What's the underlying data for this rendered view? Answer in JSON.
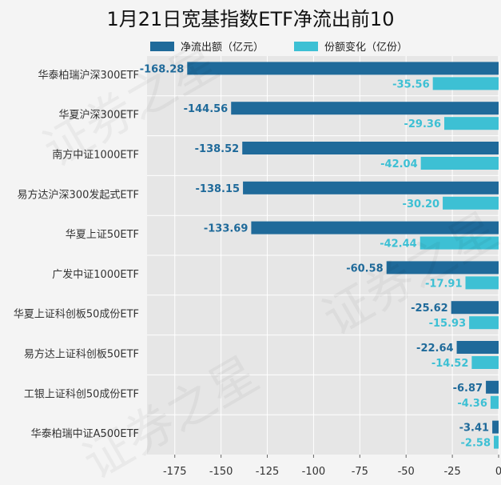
{
  "title": "1月21日宽基指数ETF净流出前10",
  "colors": {
    "series1": "#1f6a9a",
    "series2": "#3dc0d4",
    "grid": "#ffffff",
    "plot_bg": "#e6e6e6"
  },
  "chart_data": {
    "type": "bar",
    "orientation": "horizontal",
    "title": "1月21日宽基指数ETF净流出前10",
    "categories": [
      "华泰柏瑞沪深300ETF",
      "华夏沪深300ETF",
      "南方中证1000ETF",
      "易方达沪深300发起式ETF",
      "华夏上证50ETF",
      "广发中证1000ETF",
      "华夏上证科创板50成份ETF",
      "易方达上证科创板50ETF",
      "工银上证科创50成份ETF",
      "华泰柏瑞中证A500ETF"
    ],
    "series": [
      {
        "name": "净流出额（亿元）",
        "values": [
          -168.28,
          -144.56,
          -138.52,
          -138.15,
          -133.69,
          -60.58,
          -25.62,
          -22.64,
          -6.87,
          -3.41
        ],
        "labels": [
          "-168.28",
          "-144.56",
          "-138.52",
          "-138.15",
          "-133.69",
          "-60.58",
          "-25.62",
          "-22.64",
          "-6.87",
          "-3.41"
        ]
      },
      {
        "name": "份额变化（亿份）",
        "values": [
          -35.56,
          -29.36,
          -42.04,
          -30.2,
          -42.44,
          -17.91,
          -15.93,
          -14.52,
          -4.36,
          -2.58
        ],
        "labels": [
          "-35.56",
          "-29.36",
          "-42.04",
          "-30.20",
          "-42.44",
          "-17.91",
          "-15.93",
          "-14.52",
          "-4.36",
          "-2.58"
        ]
      }
    ],
    "xlim": [
      -190,
      0
    ],
    "xticks": [
      -175,
      -150,
      -125,
      -100,
      -75,
      -50,
      -25,
      0
    ],
    "xtick_labels": [
      "-175",
      "-150",
      "-125",
      "-100",
      "-75",
      "-50",
      "-25",
      "0"
    ],
    "grid": true,
    "legend_position": "top"
  },
  "watermark": "证券之星"
}
